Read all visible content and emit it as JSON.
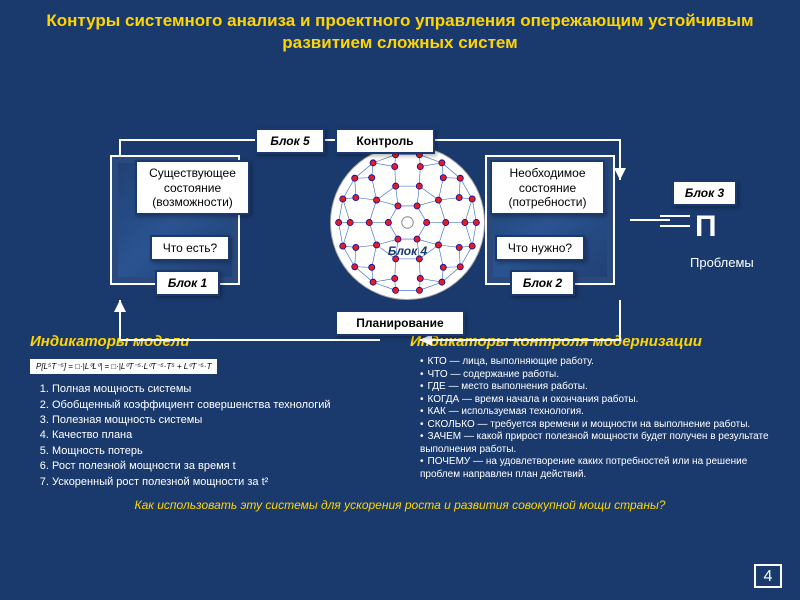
{
  "title": "Контуры системного анализа и проектного управления опережающим устойчивым развитием сложных систем",
  "blocks": {
    "b1": "Блок 1",
    "b2": "Блок 2",
    "b3": "Блок 3",
    "b4": "Блок 4",
    "b5": "Блок 5"
  },
  "labels": {
    "control": "Контроль",
    "existing": "Существующее состояние (возможности)",
    "required": "Необходимое состояние (потребности)",
    "what_is": "Что есть?",
    "what_need": "Что нужно?",
    "planning": "Планирование",
    "problems": "Проблемы",
    "pi": "П"
  },
  "model_indicators": {
    "heading": "Индикаторы модели",
    "formula": "P[L⁵T⁻⁵] = □·|L⁰L⁰| = □·|L⁰T⁻⁵·L⁰T⁻⁵·T⁵ + L⁰T⁻⁵·T",
    "items": [
      "Полная мощность системы",
      "Обобщенный коэффициент совершенства технологий",
      "Полезная мощность системы",
      "Качество плана",
      "Мощность потерь",
      "Рост полезной мощности за время t",
      "Ускоренный рост полезной мощности за t²"
    ]
  },
  "control_indicators": {
    "heading": "Индикаторы контроля модернизации",
    "items": [
      "КТО — лица, выполняющие работу.",
      "ЧТО — содержание работы.",
      "ГДЕ — место выполнения работы.",
      "КОГДА — время начала и окончания работы.",
      "КАК — используемая технология.",
      "СКОЛЬКО — требуется времени и мощности на выполнение работы.",
      "ЗАЧЕМ — какой прирост полезной мощности будет получен в результате выполнения работы.",
      "ПОЧЕМУ — на удовлетворение каких потребностей или на решение проблем направлен план действий."
    ]
  },
  "footer_question": "Как использовать эту системы для ускорения роста и развития совокупной мощи страны?",
  "page_number": "4",
  "colors": {
    "bg": "#1a3a6e",
    "accent": "#ffd500",
    "node": "#e02020",
    "node_border": "#0000aa",
    "edge": "#3060c0"
  },
  "network": {
    "rings": [
      {
        "r": 20,
        "n": 6
      },
      {
        "r": 40,
        "n": 10
      },
      {
        "r": 60,
        "n": 14
      },
      {
        "r": 72,
        "n": 18
      }
    ],
    "node_radius": 3.2
  }
}
